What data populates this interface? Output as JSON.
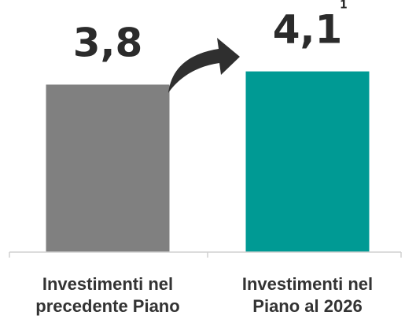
{
  "chart_data": {
    "type": "bar",
    "categories": [
      [
        "Investimenti nel",
        "precedente Piano"
      ],
      [
        "Investimenti nel",
        "Piano al 2026"
      ]
    ],
    "values": [
      3.8,
      4.1
    ],
    "value_labels": [
      "3,8",
      "4,1"
    ],
    "footnote_marks": [
      "",
      "1"
    ],
    "ylim": [
      0,
      5.72
    ],
    "grid": false,
    "title": "",
    "xlabel": "",
    "ylabel": "",
    "colors": [
      "#808080",
      "#009a94"
    ],
    "arrow_color": "#2f2f2f",
    "axis_color": "#d0d0d0"
  }
}
